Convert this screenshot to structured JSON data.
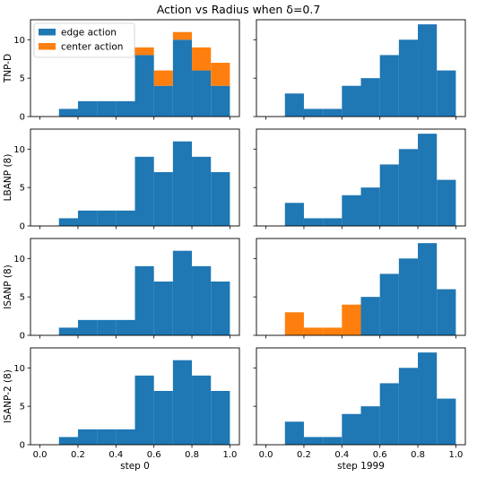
{
  "chart_data": {
    "type": "bar",
    "title": "Action vs Radius when δ=0.7",
    "bins": [
      0.1,
      0.2,
      0.3,
      0.4,
      0.5,
      0.6,
      0.7,
      0.8,
      0.9,
      1.0
    ],
    "xlim": [
      -0.05,
      1.05
    ],
    "ylim": [
      0,
      12.6
    ],
    "xticks": [
      "0.0",
      "0.2",
      "0.4",
      "0.6",
      "0.8",
      "1.0"
    ],
    "yticks": [
      "0",
      "5",
      "10"
    ],
    "col_labels": [
      "step 0",
      "step 1999"
    ],
    "legend": {
      "placement": "top-left",
      "entries": [
        "edge action",
        "center action"
      ]
    },
    "colors": {
      "edge": "#1f77b4",
      "center": "#ff7f0e"
    },
    "panels": [
      {
        "row": "TNP-D",
        "col": "step 0",
        "edge": [
          1,
          2,
          2,
          2,
          8,
          4,
          10,
          6,
          4
        ],
        "center": [
          0,
          0,
          0,
          0,
          1,
          2,
          1,
          3,
          3
        ]
      },
      {
        "row": "TNP-D",
        "col": "step 1999",
        "edge": [
          3,
          1,
          1,
          4,
          5,
          8,
          10,
          12,
          6
        ],
        "center": [
          0,
          0,
          0,
          0,
          0,
          0,
          0,
          0,
          0
        ]
      },
      {
        "row": "LBANP (8)",
        "col": "step 0",
        "edge": [
          1,
          2,
          2,
          2,
          9,
          7,
          11,
          9,
          7
        ],
        "center": [
          0,
          0,
          0,
          0,
          0,
          0,
          0,
          0,
          0
        ]
      },
      {
        "row": "LBANP (8)",
        "col": "step 1999",
        "edge": [
          3,
          1,
          1,
          4,
          5,
          8,
          10,
          12,
          6
        ],
        "center": [
          0,
          0,
          0,
          0,
          0,
          0,
          0,
          0,
          0
        ]
      },
      {
        "row": "ISANP (8)",
        "col": "step 0",
        "edge": [
          1,
          2,
          2,
          2,
          9,
          7,
          11,
          9,
          7
        ],
        "center": [
          0,
          0,
          0,
          0,
          0,
          0,
          0,
          0,
          0
        ]
      },
      {
        "row": "ISANP (8)",
        "col": "step 1999",
        "edge": [
          0,
          0,
          0,
          0,
          5,
          8,
          10,
          12,
          6
        ],
        "center": [
          3,
          1,
          1,
          4,
          0,
          0,
          0,
          0,
          0
        ]
      },
      {
        "row": "ISANP-2 (8)",
        "col": "step 0",
        "edge": [
          1,
          2,
          2,
          2,
          9,
          7,
          11,
          9,
          7
        ],
        "center": [
          0,
          0,
          0,
          0,
          0,
          0,
          0,
          0,
          0
        ]
      },
      {
        "row": "ISANP-2 (8)",
        "col": "step 1999",
        "edge": [
          3,
          1,
          1,
          4,
          5,
          8,
          10,
          12,
          6
        ],
        "center": [
          0,
          0,
          0,
          0,
          0,
          0,
          0,
          0,
          0
        ]
      }
    ]
  }
}
